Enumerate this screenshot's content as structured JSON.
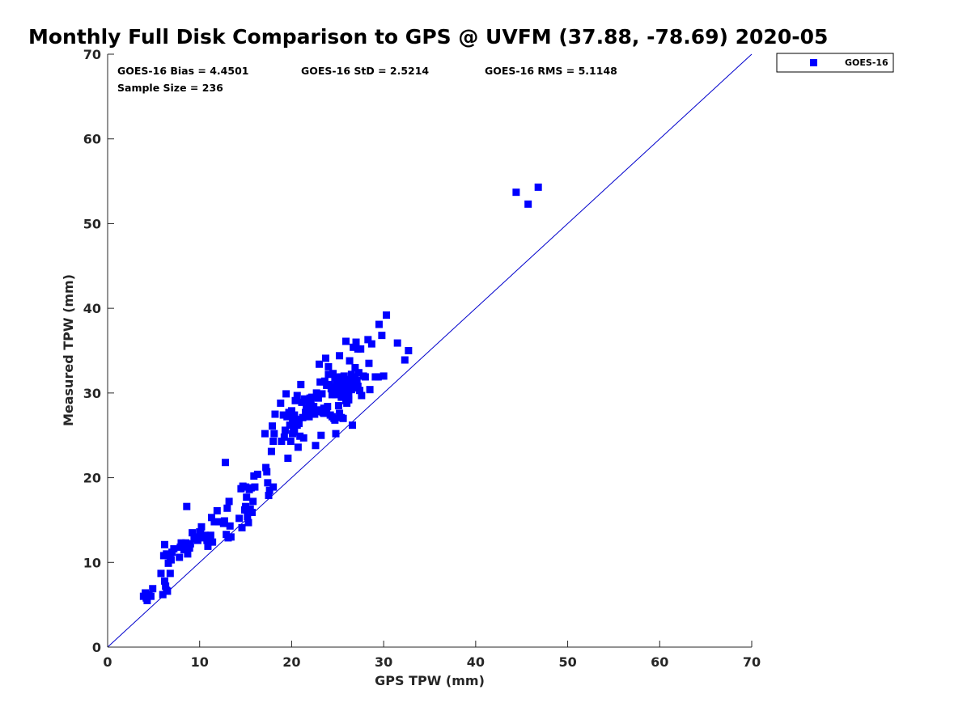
{
  "chart_data": {
    "type": "scatter",
    "title": "Monthly Full Disk Comparison to GPS @ UVFM (37.88, -78.69) 2020-05",
    "xlabel": "GPS TPW (mm)",
    "ylabel": "Measured TPW (mm)",
    "xlim": [
      0,
      70
    ],
    "ylim": [
      0,
      70
    ],
    "xticks": [
      0,
      10,
      20,
      30,
      40,
      50,
      60,
      70
    ],
    "yticks": [
      0,
      10,
      20,
      30,
      40,
      50,
      60,
      70
    ],
    "grid": false,
    "legend_position": "outside-top-right",
    "reference_line": {
      "from": [
        0,
        0
      ],
      "to": [
        70,
        70
      ],
      "color": "#0000cc"
    },
    "stats": {
      "bias": "GOES-16 Bias = 4.4501",
      "std": "GOES-16 StD = 2.5214",
      "rms": "GOES-16 RMS = 5.1148",
      "sample_size": "Sample Size = 236"
    },
    "series": [
      {
        "name": "GOES-16",
        "color": "#0000ff",
        "marker": "square",
        "points": [
          [
            3.9,
            6.0
          ],
          [
            4.1,
            6.4
          ],
          [
            4.3,
            5.5
          ],
          [
            4.5,
            6.2
          ],
          [
            4.7,
            6.0
          ],
          [
            4.9,
            6.9
          ],
          [
            4.2,
            5.8
          ],
          [
            5.8,
            8.7
          ],
          [
            6.0,
            6.2
          ],
          [
            6.2,
            7.8
          ],
          [
            6.3,
            7.2
          ],
          [
            6.4,
            6.7
          ],
          [
            6.6,
            9.9
          ],
          [
            6.8,
            8.7
          ],
          [
            6.5,
            6.6
          ],
          [
            6.1,
            10.8
          ],
          [
            6.4,
            11.0
          ],
          [
            6.2,
            12.1
          ],
          [
            6.8,
            10.5
          ],
          [
            7.0,
            11.2
          ],
          [
            7.2,
            11.6
          ],
          [
            6.9,
            10.3
          ],
          [
            7.8,
            10.6
          ],
          [
            7.9,
            11.8
          ],
          [
            8.0,
            12.3
          ],
          [
            8.3,
            11.5
          ],
          [
            8.5,
            12.3
          ],
          [
            8.7,
            11.0
          ],
          [
            8.9,
            11.7
          ],
          [
            8.6,
            16.6
          ],
          [
            9.0,
            12.2
          ],
          [
            9.2,
            13.5
          ],
          [
            9.4,
            12.8
          ],
          [
            9.6,
            13.0
          ],
          [
            9.8,
            12.6
          ],
          [
            10.0,
            13.6
          ],
          [
            10.2,
            14.2
          ],
          [
            10.4,
            12.9
          ],
          [
            10.1,
            13.4
          ],
          [
            10.6,
            13.2
          ],
          [
            10.8,
            12.6
          ],
          [
            10.9,
            11.9
          ],
          [
            11.1,
            12.8
          ],
          [
            11.2,
            13.2
          ],
          [
            11.4,
            12.4
          ],
          [
            11.3,
            15.3
          ],
          [
            11.6,
            14.8
          ],
          [
            11.9,
            16.1
          ],
          [
            12.1,
            14.8
          ],
          [
            12.4,
            14.8
          ],
          [
            12.6,
            14.6
          ],
          [
            12.8,
            21.8
          ],
          [
            12.9,
            13.3
          ],
          [
            13.0,
            16.4
          ],
          [
            13.1,
            12.9
          ],
          [
            13.2,
            17.2
          ],
          [
            13.3,
            14.3
          ],
          [
            13.4,
            13.0
          ],
          [
            12.7,
            14.9
          ],
          [
            14.3,
            15.2
          ],
          [
            14.5,
            18.7
          ],
          [
            14.6,
            14.1
          ],
          [
            14.7,
            19.0
          ],
          [
            14.9,
            16.2
          ],
          [
            15.0,
            16.6
          ],
          [
            15.1,
            17.7
          ],
          [
            15.2,
            15.4
          ],
          [
            15.3,
            14.7
          ],
          [
            15.4,
            18.6
          ],
          [
            15.5,
            16.3
          ],
          [
            15.6,
            18.8
          ],
          [
            15.7,
            15.9
          ],
          [
            15.8,
            17.2
          ],
          [
            15.9,
            20.2
          ],
          [
            16.0,
            18.9
          ],
          [
            16.3,
            20.4
          ],
          [
            15.0,
            18.9
          ],
          [
            17.1,
            25.2
          ],
          [
            17.2,
            21.2
          ],
          [
            17.3,
            20.7
          ],
          [
            17.4,
            19.4
          ],
          [
            17.5,
            17.9
          ],
          [
            17.6,
            18.5
          ],
          [
            17.8,
            23.1
          ],
          [
            17.9,
            26.1
          ],
          [
            18.0,
            18.9
          ],
          [
            18.1,
            25.2
          ],
          [
            18.2,
            27.5
          ],
          [
            18.0,
            24.3
          ],
          [
            18.8,
            28.8
          ],
          [
            18.9,
            24.3
          ],
          [
            19.1,
            27.4
          ],
          [
            19.2,
            24.8
          ],
          [
            19.3,
            25.6
          ],
          [
            19.4,
            29.9
          ],
          [
            19.6,
            22.3
          ],
          [
            19.5,
            27.2
          ],
          [
            19.7,
            27.7
          ],
          [
            19.8,
            26.2
          ],
          [
            19.9,
            24.3
          ],
          [
            20.0,
            27.9
          ],
          [
            20.1,
            25.2
          ],
          [
            20.2,
            25.8
          ],
          [
            20.3,
            27.4
          ],
          [
            20.4,
            29.1
          ],
          [
            20.5,
            26.5
          ],
          [
            20.6,
            29.7
          ],
          [
            20.7,
            23.6
          ],
          [
            20.8,
            26.9
          ],
          [
            20.9,
            24.9
          ],
          [
            21.0,
            31.0
          ],
          [
            21.1,
            28.9
          ],
          [
            21.2,
            27.1
          ],
          [
            21.3,
            24.7
          ],
          [
            21.4,
            29.3
          ],
          [
            21.6,
            28.2
          ],
          [
            21.7,
            27.3
          ],
          [
            21.8,
            29.1
          ],
          [
            21.9,
            28.8
          ],
          [
            22.0,
            27.9
          ],
          [
            22.1,
            28.7
          ],
          [
            22.2,
            29.5
          ],
          [
            22.3,
            27.8
          ],
          [
            22.4,
            28.4
          ],
          [
            22.5,
            27.5
          ],
          [
            22.6,
            23.8
          ],
          [
            22.7,
            30.0
          ],
          [
            22.8,
            27.8
          ],
          [
            22.9,
            29.4
          ],
          [
            23.0,
            33.4
          ],
          [
            23.1,
            31.3
          ],
          [
            23.2,
            25.0
          ],
          [
            23.3,
            29.9
          ],
          [
            23.4,
            27.7
          ],
          [
            23.5,
            28.2
          ],
          [
            23.6,
            31.4
          ],
          [
            23.7,
            34.1
          ],
          [
            23.8,
            27.9
          ],
          [
            23.9,
            28.4
          ],
          [
            24.0,
            33.1
          ],
          [
            24.1,
            31.0
          ],
          [
            24.3,
            30.5
          ],
          [
            24.4,
            27.2
          ],
          [
            24.5,
            32.3
          ],
          [
            24.6,
            27.0
          ],
          [
            24.7,
            31.8
          ],
          [
            24.8,
            25.2
          ],
          [
            24.9,
            30.9
          ],
          [
            25.0,
            30.1
          ],
          [
            25.1,
            28.5
          ],
          [
            25.2,
            34.4
          ],
          [
            25.3,
            30.7
          ],
          [
            25.4,
            27.1
          ],
          [
            25.5,
            31.1
          ],
          [
            25.6,
            29.5
          ],
          [
            25.7,
            32.0
          ],
          [
            25.8,
            30.3
          ],
          [
            25.9,
            36.1
          ],
          [
            26.0,
            30.1
          ],
          [
            26.1,
            31.2
          ],
          [
            26.2,
            29.7
          ],
          [
            26.3,
            33.8
          ],
          [
            26.4,
            30.8
          ],
          [
            26.5,
            32.2
          ],
          [
            26.6,
            26.2
          ],
          [
            26.7,
            35.4
          ],
          [
            26.8,
            30.6
          ],
          [
            26.9,
            33.0
          ],
          [
            27.0,
            36.0
          ],
          [
            27.1,
            31.5
          ],
          [
            27.2,
            35.2
          ],
          [
            27.3,
            32.4
          ],
          [
            27.5,
            35.2
          ],
          [
            27.6,
            29.7
          ],
          [
            27.8,
            32.0
          ],
          [
            28.0,
            31.9
          ],
          [
            28.3,
            36.3
          ],
          [
            28.4,
            33.5
          ],
          [
            28.5,
            30.4
          ],
          [
            28.7,
            35.8
          ],
          [
            29.1,
            31.9
          ],
          [
            29.4,
            31.9
          ],
          [
            29.5,
            38.1
          ],
          [
            29.8,
            36.8
          ],
          [
            30.0,
            32.0
          ],
          [
            30.3,
            39.2
          ],
          [
            31.5,
            35.9
          ],
          [
            32.3,
            33.9
          ],
          [
            32.7,
            35.0
          ],
          [
            25.5,
            30.6
          ],
          [
            25.8,
            31.3
          ],
          [
            26.1,
            30.2
          ],
          [
            25.6,
            29.9
          ],
          [
            26.4,
            31.6
          ],
          [
            25.3,
            31.9
          ],
          [
            25.9,
            29.1
          ],
          [
            26.0,
            28.8
          ],
          [
            24.8,
            29.8
          ],
          [
            25.1,
            30.8
          ],
          [
            24.9,
            31.5
          ],
          [
            25.7,
            30.9
          ],
          [
            26.2,
            29.2
          ],
          [
            25.4,
            29.5
          ],
          [
            24.6,
            30.7
          ],
          [
            26.5,
            30.4
          ],
          [
            21.8,
            28.2
          ],
          [
            22.2,
            28.0
          ],
          [
            21.5,
            27.7
          ],
          [
            22.0,
            29.4
          ],
          [
            21.9,
            27.2
          ],
          [
            20.8,
            26.4
          ],
          [
            20.3,
            25.4
          ],
          [
            20.1,
            26.8
          ],
          [
            19.9,
            27.6
          ],
          [
            20.6,
            26.2
          ],
          [
            23.5,
            27.6
          ],
          [
            23.1,
            28.0
          ],
          [
            24.2,
            27.4
          ],
          [
            24.7,
            26.8
          ],
          [
            25.6,
            27.0
          ],
          [
            25.2,
            27.6
          ],
          [
            26.7,
            31.0
          ],
          [
            27.4,
            30.3
          ],
          [
            26.9,
            31.9
          ],
          [
            27.2,
            30.8
          ],
          [
            25.0,
            31.3
          ],
          [
            24.0,
            32.2
          ],
          [
            23.8,
            30.9
          ],
          [
            24.4,
            29.8
          ],
          [
            44.4,
            53.7
          ],
          [
            45.7,
            52.3
          ],
          [
            46.8,
            54.3
          ]
        ]
      }
    ]
  }
}
